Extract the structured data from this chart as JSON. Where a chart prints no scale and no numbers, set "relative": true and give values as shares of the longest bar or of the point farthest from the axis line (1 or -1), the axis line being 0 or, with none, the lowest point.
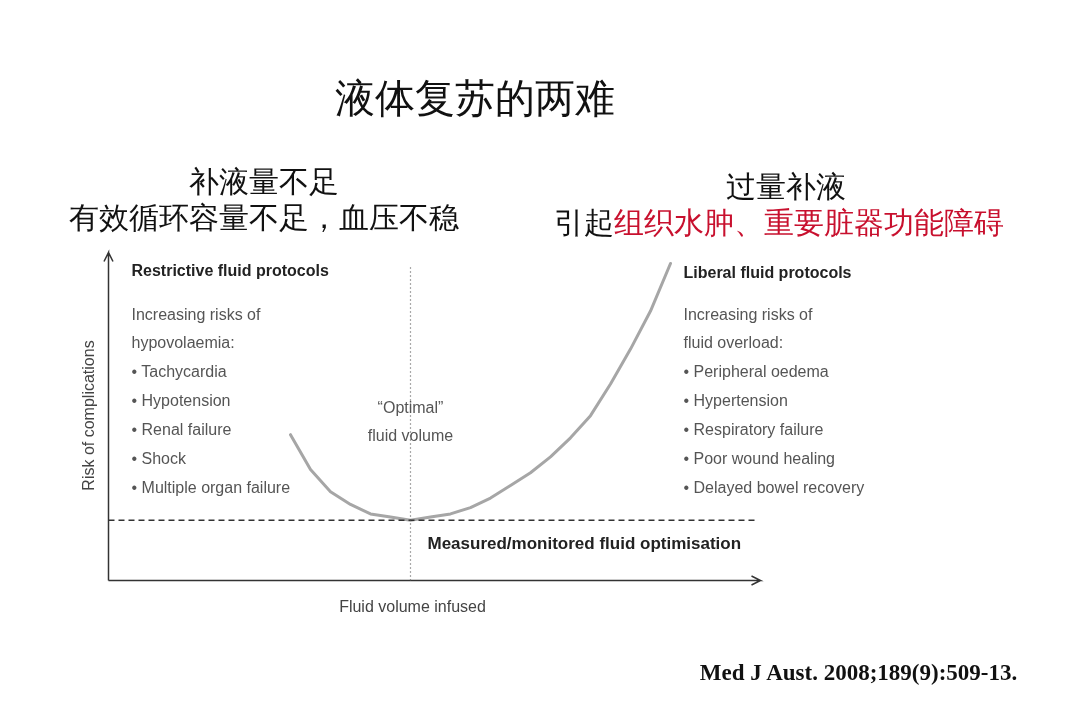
{
  "chart_data": {
    "type": "line",
    "title": "液体复苏的两难",
    "xlabel": "Fluid volume infused",
    "ylabel": "Risk of complications",
    "relative": true,
    "categories": [
      null,
      null,
      null,
      null,
      null,
      null,
      null,
      null,
      null,
      null,
      null,
      null,
      null,
      null,
      null,
      null,
      null,
      null,
      null,
      null,
      null,
      null,
      null,
      null,
      null,
      null,
      null,
      null,
      null,
      null,
      null,
      null,
      null
    ],
    "series": [
      {
        "color": "#a6a6a6",
        "values": [
          null,
          null,
          null,
          null,
          null,
          null,
          null,
          null,
          null,
          0.46,
          0.35,
          0.28,
          0.24,
          0.21,
          0.2,
          0.19,
          0.2,
          0.21,
          0.23,
          0.26,
          0.3,
          0.34,
          0.39,
          0.45,
          0.52,
          0.62,
          0.73,
          0.85,
          1.0,
          null,
          null,
          null,
          null
        ]
      }
    ],
    "ref_lines": [
      {
        "axis": "y",
        "value": 0.19,
        "label": "Measured/monitored fluid optimisation",
        "color": "#333333",
        "line_style": "dashed"
      },
      {
        "axis": "x",
        "label": "“Optimal”\nfluid volume",
        "color": "#555555",
        "line_style": "dotted"
      }
    ],
    "annotations": [
      "补液量不足",
      "有效循环容量不足，血压不稳",
      "过量补液",
      "引起",
      "组织水肿、重要脏器功能障碍",
      "Restrictive fluid protocols",
      "Increasing risks of\nhypovolaemia:\n• Tachycardia\n• Hypotension\n• Renal failure\n• Shock\n• Multiple organ failure",
      "Liberal fluid protocols",
      "Increasing risks of\nfluid overload:\n• Peripheral oedema\n• Hypertension\n• Respiratory failure\n• Poor wound healing\n• Delayed bowel recovery",
      "Med J Aust. 2008;189(9):509-13."
    ]
  }
}
